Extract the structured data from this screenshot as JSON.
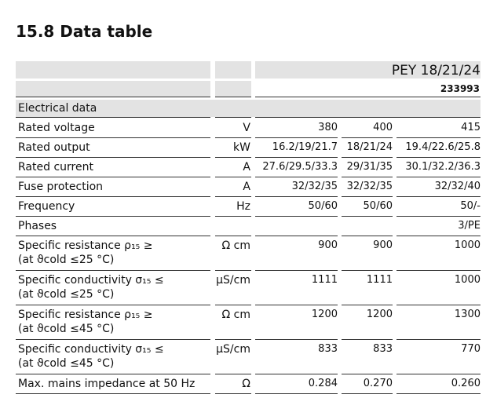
{
  "header": {
    "title": "15.8 Data table"
  },
  "table": {
    "model": "PEY 18/21/24",
    "part_number": "233993",
    "section": "Electrical data",
    "rows": [
      {
        "label": "Rated voltage",
        "unit": "V",
        "values": [
          "380",
          "400",
          "415"
        ]
      },
      {
        "label": "Rated output",
        "unit": "kW",
        "values": [
          "16.2/19/21.7",
          "18/21/24",
          "19.4/22.6/25.8"
        ]
      },
      {
        "label": "Rated current",
        "unit": "A",
        "values": [
          "27.6/29.5/33.3",
          "29/31/35",
          "30.1/32.2/36.3"
        ]
      },
      {
        "label": "Fuse protection",
        "unit": "A",
        "values": [
          "32/32/35",
          "32/32/35",
          "32/32/40"
        ]
      },
      {
        "label": "Frequency",
        "unit": "Hz",
        "values": [
          "50/60",
          "50/60",
          "50/-"
        ]
      },
      {
        "label": "Phases",
        "unit": null,
        "values": [
          null,
          null,
          "3/PE"
        ]
      },
      {
        "label": "Specific resistance ρ₁₅ ≥",
        "label2": "(at ϑcold ≤25 °C)",
        "unit": "Ω cm",
        "values": [
          "900",
          "900",
          "1000"
        ]
      },
      {
        "label": "Specific conductivity σ₁₅ ≤",
        "label2": "(at ϑcold ≤25 °C)",
        "unit": "μS/cm",
        "values": [
          "1111",
          "1111",
          "1000"
        ]
      },
      {
        "label": "Specific resistance ρ₁₅ ≥",
        "label2": "(at ϑcold ≤45 °C)",
        "unit": "Ω cm",
        "values": [
          "1200",
          "1200",
          "1300"
        ]
      },
      {
        "label": "Specific conductivity σ₁₅ ≤",
        "label2": "(at ϑcold ≤45 °C)",
        "unit": "μS/cm",
        "values": [
          "833",
          "833",
          "770"
        ]
      },
      {
        "label": "Max. mains impedance at 50 Hz",
        "unit": "Ω",
        "values": [
          "0.284",
          "0.270",
          "0.260"
        ]
      }
    ]
  }
}
